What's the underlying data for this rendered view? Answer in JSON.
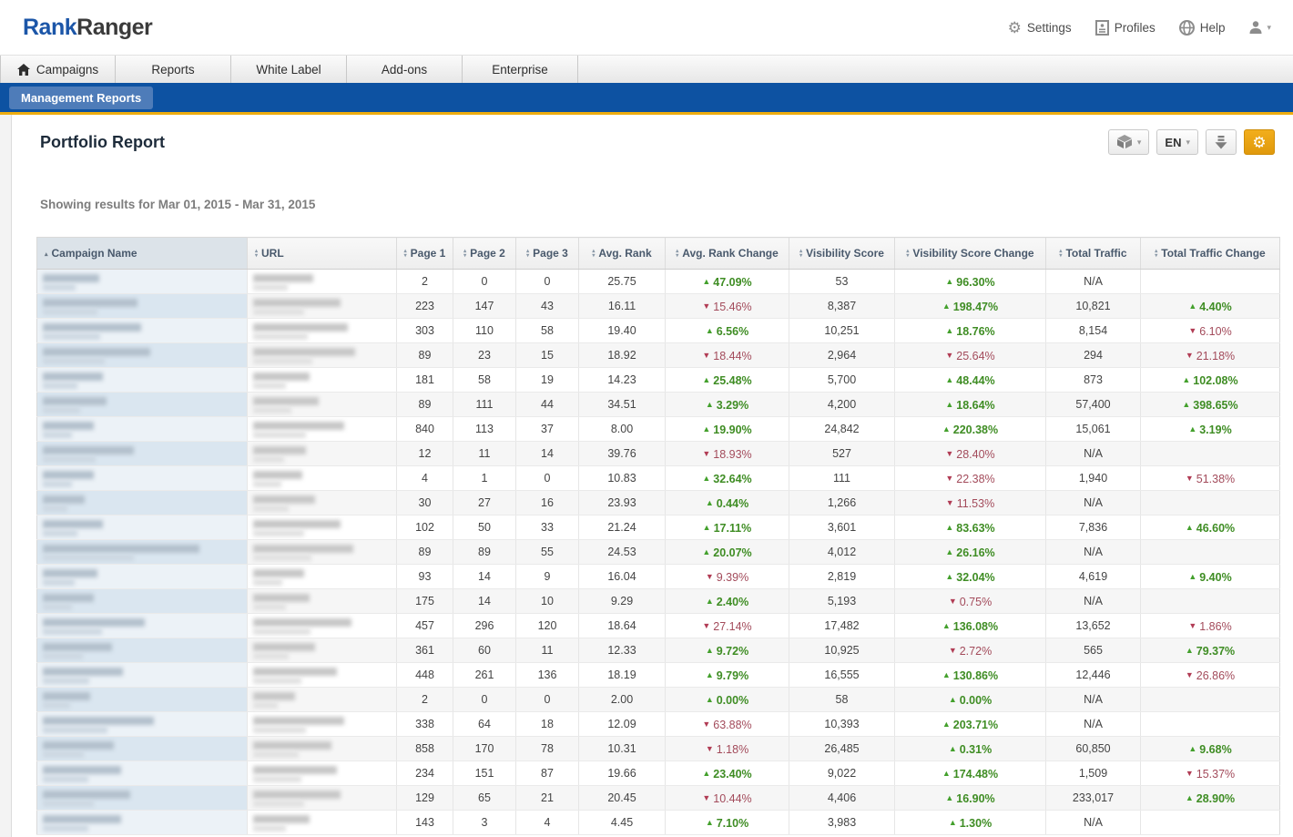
{
  "brand": {
    "part1": "Rank",
    "part2": "Ranger"
  },
  "topbar": {
    "settings_label": "Settings",
    "profiles_label": "Profiles",
    "help_label": "Help"
  },
  "nav": {
    "tabs": [
      {
        "label": "Campaigns",
        "icon": "home-icon"
      },
      {
        "label": "Reports",
        "icon": null
      },
      {
        "label": "White Label",
        "icon": null
      },
      {
        "label": "Add-ons",
        "icon": null
      },
      {
        "label": "Enterprise",
        "icon": null
      }
    ],
    "subnav_label": "Management Reports"
  },
  "page": {
    "title": "Portfolio Report",
    "subtitle": "Showing results for Mar 01, 2015 - Mar 31, 2015"
  },
  "toolbar": {
    "language": "EN",
    "accent_orange": "#eda311",
    "icons": [
      "package-icon",
      "language-select",
      "download-icon",
      "report-settings-gear-icon"
    ]
  },
  "colors": {
    "subnav_blue": "#0d52a2",
    "gold_line": "#eead10",
    "positive_green": "#3f8d24",
    "negative_red": "#a34b5b"
  },
  "table": {
    "na_label": "N/A",
    "columns": [
      {
        "key": "campaign",
        "label": "Campaign Name",
        "sort": "asc"
      },
      {
        "key": "url",
        "label": "URL",
        "sort": "both"
      },
      {
        "key": "page1",
        "label": "Page 1",
        "sort": "both"
      },
      {
        "key": "page2",
        "label": "Page 2",
        "sort": "both"
      },
      {
        "key": "page3",
        "label": "Page 3",
        "sort": "both"
      },
      {
        "key": "avg_rank",
        "label": "Avg. Rank",
        "sort": "both"
      },
      {
        "key": "rank_change",
        "label": "Avg. Rank Change",
        "sort": "both"
      },
      {
        "key": "visibility",
        "label": "Visibility Score",
        "sort": "both"
      },
      {
        "key": "visibility_change",
        "label": "Visibility Score Change",
        "sort": "both"
      },
      {
        "key": "traffic",
        "label": "Total Traffic",
        "sort": "both"
      },
      {
        "key": "traffic_change",
        "label": "Total Traffic Change",
        "sort": "both"
      }
    ],
    "rows": [
      {
        "name_w": 62,
        "url_w": 66,
        "page1": "2",
        "page2": "0",
        "page3": "0",
        "avg_rank": "25.75",
        "rank_change": {
          "dir": "up",
          "value": "47.09%"
        },
        "visibility": "53",
        "visibility_change": {
          "dir": "up",
          "value": "96.30%"
        },
        "traffic": "N/A",
        "traffic_change": null
      },
      {
        "name_w": 104,
        "url_w": 96,
        "page1": "223",
        "page2": "147",
        "page3": "43",
        "avg_rank": "16.11",
        "rank_change": {
          "dir": "down",
          "value": "15.46%"
        },
        "visibility": "8,387",
        "visibility_change": {
          "dir": "up",
          "value": "198.47%"
        },
        "traffic": "10,821",
        "traffic_change": {
          "dir": "up",
          "value": "4.40%"
        }
      },
      {
        "name_w": 108,
        "url_w": 104,
        "page1": "303",
        "page2": "110",
        "page3": "58",
        "avg_rank": "19.40",
        "rank_change": {
          "dir": "up",
          "value": "6.56%"
        },
        "visibility": "10,251",
        "visibility_change": {
          "dir": "up",
          "value": "18.76%"
        },
        "traffic": "8,154",
        "traffic_change": {
          "dir": "down",
          "value": "6.10%"
        }
      },
      {
        "name_w": 118,
        "url_w": 112,
        "page1": "89",
        "page2": "23",
        "page3": "15",
        "avg_rank": "18.92",
        "rank_change": {
          "dir": "down",
          "value": "18.44%"
        },
        "visibility": "2,964",
        "visibility_change": {
          "dir": "down",
          "value": "25.64%"
        },
        "traffic": "294",
        "traffic_change": {
          "dir": "down",
          "value": "21.18%"
        }
      },
      {
        "name_w": 66,
        "url_w": 62,
        "page1": "181",
        "page2": "58",
        "page3": "19",
        "avg_rank": "14.23",
        "rank_change": {
          "dir": "up",
          "value": "25.48%"
        },
        "visibility": "5,700",
        "visibility_change": {
          "dir": "up",
          "value": "48.44%"
        },
        "traffic": "873",
        "traffic_change": {
          "dir": "up",
          "value": "102.08%"
        }
      },
      {
        "name_w": 70,
        "url_w": 72,
        "page1": "89",
        "page2": "111",
        "page3": "44",
        "avg_rank": "34.51",
        "rank_change": {
          "dir": "up",
          "value": "3.29%"
        },
        "visibility": "4,200",
        "visibility_change": {
          "dir": "up",
          "value": "18.64%"
        },
        "traffic": "57,400",
        "traffic_change": {
          "dir": "up",
          "value": "398.65%"
        }
      },
      {
        "name_w": 56,
        "url_w": 100,
        "page1": "840",
        "page2": "113",
        "page3": "37",
        "avg_rank": "8.00",
        "rank_change": {
          "dir": "up",
          "value": "19.90%"
        },
        "visibility": "24,842",
        "visibility_change": {
          "dir": "up",
          "value": "220.38%"
        },
        "traffic": "15,061",
        "traffic_change": {
          "dir": "up",
          "value": "3.19%"
        }
      },
      {
        "name_w": 100,
        "url_w": 58,
        "page1": "12",
        "page2": "11",
        "page3": "14",
        "avg_rank": "39.76",
        "rank_change": {
          "dir": "down",
          "value": "18.93%"
        },
        "visibility": "527",
        "visibility_change": {
          "dir": "down",
          "value": "28.40%"
        },
        "traffic": "N/A",
        "traffic_change": null
      },
      {
        "name_w": 56,
        "url_w": 54,
        "page1": "4",
        "page2": "1",
        "page3": "0",
        "avg_rank": "10.83",
        "rank_change": {
          "dir": "up",
          "value": "32.64%"
        },
        "visibility": "111",
        "visibility_change": {
          "dir": "down",
          "value": "22.38%"
        },
        "traffic": "1,940",
        "traffic_change": {
          "dir": "down",
          "value": "51.38%"
        }
      },
      {
        "name_w": 46,
        "url_w": 68,
        "page1": "30",
        "page2": "27",
        "page3": "16",
        "avg_rank": "23.93",
        "rank_change": {
          "dir": "up",
          "value": "0.44%"
        },
        "visibility": "1,266",
        "visibility_change": {
          "dir": "down",
          "value": "11.53%"
        },
        "traffic": "N/A",
        "traffic_change": null
      },
      {
        "name_w": 66,
        "url_w": 96,
        "page1": "102",
        "page2": "50",
        "page3": "33",
        "avg_rank": "21.24",
        "rank_change": {
          "dir": "up",
          "value": "17.11%"
        },
        "visibility": "3,601",
        "visibility_change": {
          "dir": "up",
          "value": "83.63%"
        },
        "traffic": "7,836",
        "traffic_change": {
          "dir": "up",
          "value": "46.60%"
        }
      },
      {
        "name_w": 172,
        "url_w": 110,
        "page1": "89",
        "page2": "89",
        "page3": "55",
        "avg_rank": "24.53",
        "rank_change": {
          "dir": "up",
          "value": "20.07%"
        },
        "visibility": "4,012",
        "visibility_change": {
          "dir": "up",
          "value": "26.16%"
        },
        "traffic": "N/A",
        "traffic_change": null
      },
      {
        "name_w": 60,
        "url_w": 56,
        "page1": "93",
        "page2": "14",
        "page3": "9",
        "avg_rank": "16.04",
        "rank_change": {
          "dir": "down",
          "value": "9.39%"
        },
        "visibility": "2,819",
        "visibility_change": {
          "dir": "up",
          "value": "32.04%"
        },
        "traffic": "4,619",
        "traffic_change": {
          "dir": "up",
          "value": "9.40%"
        }
      },
      {
        "name_w": 56,
        "url_w": 62,
        "page1": "175",
        "page2": "14",
        "page3": "10",
        "avg_rank": "9.29",
        "rank_change": {
          "dir": "up",
          "value": "2.40%"
        },
        "visibility": "5,193",
        "visibility_change": {
          "dir": "down",
          "value": "0.75%"
        },
        "traffic": "N/A",
        "traffic_change": null
      },
      {
        "name_w": 112,
        "url_w": 108,
        "page1": "457",
        "page2": "296",
        "page3": "120",
        "avg_rank": "18.64",
        "rank_change": {
          "dir": "down",
          "value": "27.14%"
        },
        "visibility": "17,482",
        "visibility_change": {
          "dir": "up",
          "value": "136.08%"
        },
        "traffic": "13,652",
        "traffic_change": {
          "dir": "down",
          "value": "1.86%"
        }
      },
      {
        "name_w": 76,
        "url_w": 68,
        "page1": "361",
        "page2": "60",
        "page3": "11",
        "avg_rank": "12.33",
        "rank_change": {
          "dir": "up",
          "value": "9.72%"
        },
        "visibility": "10,925",
        "visibility_change": {
          "dir": "down",
          "value": "2.72%"
        },
        "traffic": "565",
        "traffic_change": {
          "dir": "up",
          "value": "79.37%"
        }
      },
      {
        "name_w": 88,
        "url_w": 92,
        "page1": "448",
        "page2": "261",
        "page3": "136",
        "avg_rank": "18.19",
        "rank_change": {
          "dir": "up",
          "value": "9.79%"
        },
        "visibility": "16,555",
        "visibility_change": {
          "dir": "up",
          "value": "130.86%"
        },
        "traffic": "12,446",
        "traffic_change": {
          "dir": "down",
          "value": "26.86%"
        }
      },
      {
        "name_w": 52,
        "url_w": 46,
        "page1": "2",
        "page2": "0",
        "page3": "0",
        "avg_rank": "2.00",
        "rank_change": {
          "dir": "up",
          "value": "0.00%"
        },
        "visibility": "58",
        "visibility_change": {
          "dir": "up",
          "value": "0.00%"
        },
        "traffic": "N/A",
        "traffic_change": null
      },
      {
        "name_w": 122,
        "url_w": 100,
        "page1": "338",
        "page2": "64",
        "page3": "18",
        "avg_rank": "12.09",
        "rank_change": {
          "dir": "down",
          "value": "63.88%"
        },
        "visibility": "10,393",
        "visibility_change": {
          "dir": "up",
          "value": "203.71%"
        },
        "traffic": "N/A",
        "traffic_change": null
      },
      {
        "name_w": 78,
        "url_w": 86,
        "page1": "858",
        "page2": "170",
        "page3": "78",
        "avg_rank": "10.31",
        "rank_change": {
          "dir": "down",
          "value": "1.18%"
        },
        "visibility": "26,485",
        "visibility_change": {
          "dir": "up",
          "value": "0.31%"
        },
        "traffic": "60,850",
        "traffic_change": {
          "dir": "up",
          "value": "9.68%"
        }
      },
      {
        "name_w": 86,
        "url_w": 92,
        "page1": "234",
        "page2": "151",
        "page3": "87",
        "avg_rank": "19.66",
        "rank_change": {
          "dir": "up",
          "value": "23.40%"
        },
        "visibility": "9,022",
        "visibility_change": {
          "dir": "up",
          "value": "174.48%"
        },
        "traffic": "1,509",
        "traffic_change": {
          "dir": "down",
          "value": "15.37%"
        }
      },
      {
        "name_w": 96,
        "url_w": 96,
        "page1": "129",
        "page2": "65",
        "page3": "21",
        "avg_rank": "20.45",
        "rank_change": {
          "dir": "down",
          "value": "10.44%"
        },
        "visibility": "4,406",
        "visibility_change": {
          "dir": "up",
          "value": "16.90%"
        },
        "traffic": "233,017",
        "traffic_change": {
          "dir": "up",
          "value": "28.90%"
        }
      },
      {
        "name_w": 86,
        "url_w": 62,
        "page1": "143",
        "page2": "3",
        "page3": "4",
        "avg_rank": "4.45",
        "rank_change": {
          "dir": "up",
          "value": "7.10%"
        },
        "visibility": "3,983",
        "visibility_change": {
          "dir": "up",
          "value": "1.30%"
        },
        "traffic": "N/A",
        "traffic_change": null
      }
    ]
  }
}
